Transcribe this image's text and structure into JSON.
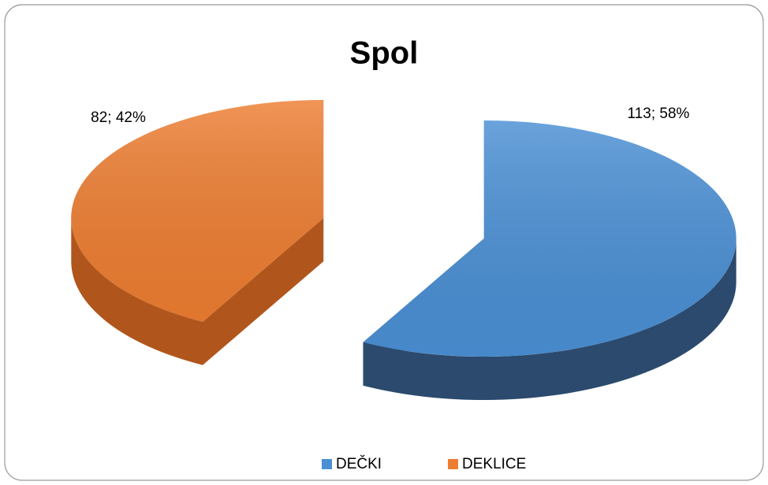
{
  "chart_data": {
    "type": "pie3d",
    "title": "Spol",
    "categories": [
      "DEČKI",
      "DEKLICE"
    ],
    "values": [
      113,
      82
    ],
    "value_labels": [
      "113; 58%",
      "82; 42%"
    ],
    "colors": [
      "#4a8fd4",
      "#ed7d31"
    ],
    "side_colors": [
      "#2b4a6e",
      "#b0561c"
    ],
    "legend": "bottom"
  }
}
